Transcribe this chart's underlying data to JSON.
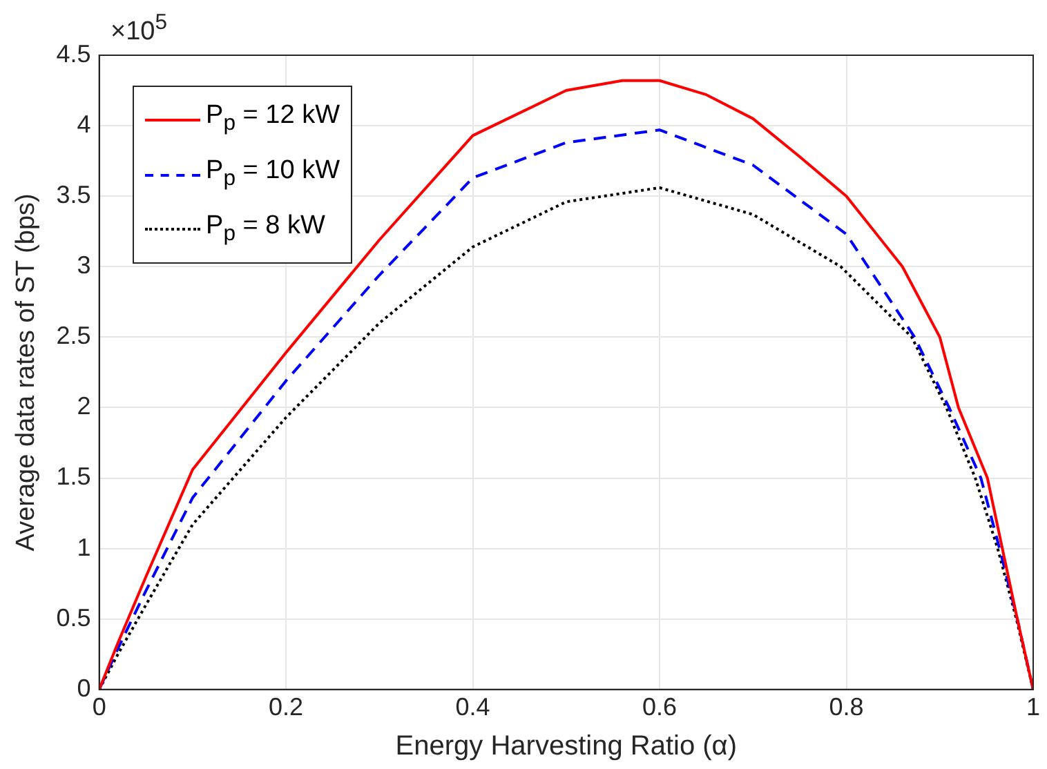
{
  "chart_data": {
    "type": "line",
    "xlabel": "Energy Harvesting Ratio (α)",
    "ylabel": "Average data rates of ST (bps)",
    "annotations": [
      "×10$^{5}$"
    ],
    "xlim": [
      0,
      1
    ],
    "xticks": [
      0,
      0.2,
      0.4,
      0.6,
      0.8,
      1
    ],
    "ylim": [
      0,
      4.5
    ],
    "yticks": [
      0,
      0.5,
      1,
      1.5,
      2,
      2.5,
      3,
      3.5,
      4,
      4.5
    ],
    "grid": true,
    "legend": "top left",
    "marker": "none",
    "series": [
      {
        "name": "P$_{p}$ = 12 kW",
        "color": "#ff0000",
        "line_style": "solid",
        "x": [
          0,
          0.02,
          0.05,
          0.1,
          0.2,
          0.3,
          0.4,
          0.5,
          0.56,
          0.6,
          0.65,
          0.7,
          0.75,
          0.8,
          0.86,
          0.9,
          0.92,
          0.951,
          0.967,
          0.983,
          1
        ],
        "values": [
          0,
          0.33,
          0.8,
          1.56,
          2.39,
          3.19,
          3.93,
          4.25,
          4.32,
          4.32,
          4.22,
          4.05,
          3.78,
          3.5,
          3.0,
          2.5,
          2.0,
          1.5,
          1.0,
          0.5,
          0
        ]
      },
      {
        "name": "P$_{p}$ = 10 kW",
        "color": "#0000ff",
        "line_style": "dashed",
        "x": [
          0,
          0.02,
          0.05,
          0.1,
          0.2,
          0.3,
          0.4,
          0.5,
          0.6,
          0.7,
          0.8,
          0.873,
          0.91,
          0.944,
          0.964,
          0.983,
          1
        ],
        "values": [
          0,
          0.29,
          0.7,
          1.36,
          2.19,
          2.94,
          3.63,
          3.88,
          3.97,
          3.72,
          3.23,
          2.5,
          2.0,
          1.5,
          1.0,
          0.5,
          0
        ]
      },
      {
        "name": "P$_{p}$ = 8 kW",
        "color": "#000000",
        "line_style": "dotted",
        "x": [
          0,
          0.02,
          0.05,
          0.1,
          0.2,
          0.3,
          0.4,
          0.5,
          0.6,
          0.7,
          0.794,
          0.87,
          0.907,
          0.938,
          0.962,
          0.982,
          1
        ],
        "values": [
          0,
          0.25,
          0.6,
          1.17,
          1.93,
          2.6,
          3.14,
          3.46,
          3.56,
          3.37,
          3.0,
          2.5,
          2.0,
          1.5,
          1.0,
          0.5,
          0
        ]
      }
    ]
  }
}
